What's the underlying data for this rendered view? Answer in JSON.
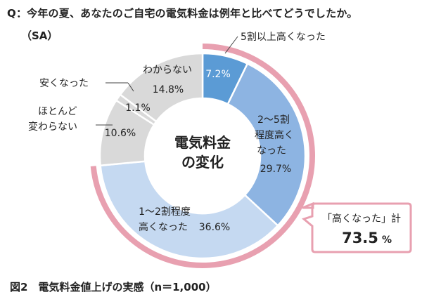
{
  "header": {
    "question": "Q：今年の夏、あなたのご自宅の電気料金は例年と比べてどうでしたか。",
    "answer_type": "（SA）"
  },
  "caption": "図2　電気料金値上げの実感（n＝1,000）",
  "chart_data": {
    "type": "pie",
    "variant": "donut",
    "center_label": [
      "電気料金",
      "の変化"
    ],
    "slices": [
      {
        "name": "5割以上高くなった",
        "value": 7.2,
        "label": "7.2%",
        "color": "#5b9bd5"
      },
      {
        "name": "2～5割程度高くなった",
        "value": 29.7,
        "label": "29.7%",
        "color": "#8db4e2"
      },
      {
        "name": "1～2割程度高くなった",
        "value": 36.6,
        "label": "36.6%",
        "color": "#c5d9f1"
      },
      {
        "name": "ほとんど変わらない",
        "value": 10.6,
        "label": "10.6%",
        "color": "#d9d9d9"
      },
      {
        "name": "安くなった",
        "value": 1.1,
        "label": "1.1%",
        "color": "#d9d9d9"
      },
      {
        "name": "わからない",
        "value": 14.8,
        "label": "14.8%",
        "color": "#d9d9d9"
      }
    ],
    "label_texts": {
      "s0_outer": "5割以上高くなった",
      "s1_l1": "2～5割",
      "s1_l2": "程度高く",
      "s1_l3": "なった",
      "s2_l1": "1～2割程度",
      "s2_l2": "高くなった",
      "s3_l1": "ほとんど",
      "s3_l2": "変わらない",
      "s4_outer": "安くなった",
      "s5_inner": "わからない"
    },
    "highlight": {
      "text": "「高くなった」計",
      "value": "73.5",
      "unit": "%",
      "covers": [
        "5割以上高くなった",
        "2～5割程度高くなった",
        "1～2割程度高くなった"
      ],
      "color": "#e8a0b0"
    }
  }
}
